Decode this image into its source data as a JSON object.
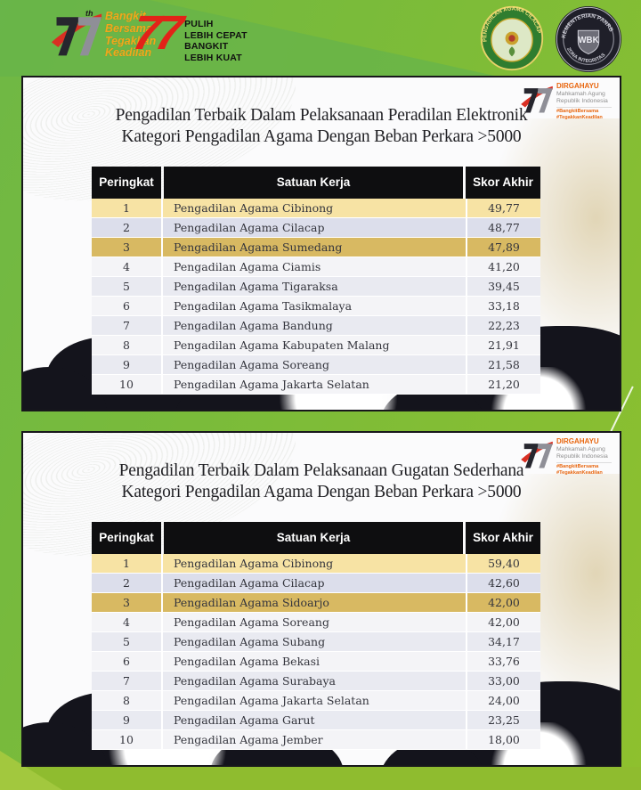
{
  "top_banner": {
    "anniversary_mark": {
      "sup": "th",
      "tagline_lines": [
        "Bangkit",
        "Bersama",
        "Tegakkan",
        "Keadilan"
      ]
    },
    "ri77": {
      "number": "77",
      "lines": [
        "PULIH",
        "LEBIH CEPAT",
        "BANGKIT",
        "LEBIH KUAT"
      ]
    },
    "court_badge": {
      "arc_text": "PENGADILAN AGAMA CILACAP"
    },
    "wbk_badge": {
      "arc_top": "KEMENTERIAN PANRB",
      "center": "WBK",
      "arc_bottom": "ZONA INTEGRITAS"
    }
  },
  "panel_corner_logo": {
    "dirgahayu": "DIRGAHAYU",
    "org1": "Mahkamah Agung",
    "org2": "Republik Indonesia",
    "hashtag1": "#BangkitBersama",
    "hashtag2": "#TegakkanKeadilan"
  },
  "sections": [
    {
      "title_line1": "Pengadilan Terbaik Dalam Pelaksanaan Peradilan Elektronik",
      "title_line2": "Kategori Pengadilan Agama Dengan Beban Perkara >5000",
      "columns": [
        "Peringkat",
        "Satuan Kerja",
        "Skor Akhir"
      ],
      "rows": [
        {
          "rank": "1",
          "unit": "Pengadilan Agama Cibinong",
          "score": "49,77"
        },
        {
          "rank": "2",
          "unit": "Pengadilan Agama Cilacap",
          "score": "48,77"
        },
        {
          "rank": "3",
          "unit": "Pengadilan Agama Sumedang",
          "score": "47,89"
        },
        {
          "rank": "4",
          "unit": "Pengadilan Agama Ciamis",
          "score": "41,20"
        },
        {
          "rank": "5",
          "unit": "Pengadilan Agama Tigaraksa",
          "score": "39,45"
        },
        {
          "rank": "6",
          "unit": "Pengadilan Agama Tasikmalaya",
          "score": "33,18"
        },
        {
          "rank": "7",
          "unit": "Pengadilan Agama Bandung",
          "score": "22,23"
        },
        {
          "rank": "8",
          "unit": "Pengadilan Agama Kabupaten Malang",
          "score": "21,91"
        },
        {
          "rank": "9",
          "unit": "Pengadilan Agama Soreang",
          "score": "21,58"
        },
        {
          "rank": "10",
          "unit": "Pengadilan Agama Jakarta Selatan",
          "score": "21,20"
        }
      ]
    },
    {
      "title_line1": "Pengadilan Terbaik Dalam Pelaksanaan Gugatan Sederhana",
      "title_line2": "Kategori Pengadilan Agama Dengan Beban Perkara >5000",
      "columns": [
        "Peringkat",
        "Satuan Kerja",
        "Skor Akhir"
      ],
      "rows": [
        {
          "rank": "1",
          "unit": "Pengadilan Agama Cibinong",
          "score": "59,40"
        },
        {
          "rank": "2",
          "unit": "Pengadilan Agama Cilacap",
          "score": "42,60"
        },
        {
          "rank": "3",
          "unit": "Pengadilan Agama Sidoarjo",
          "score": "42,00"
        },
        {
          "rank": "4",
          "unit": "Pengadilan Agama Soreang",
          "score": "42,00"
        },
        {
          "rank": "5",
          "unit": "Pengadilan Agama Subang",
          "score": "34,17"
        },
        {
          "rank": "6",
          "unit": "Pengadilan Agama Bekasi",
          "score": "33,76"
        },
        {
          "rank": "7",
          "unit": "Pengadilan Agama Surabaya",
          "score": "33,00"
        },
        {
          "rank": "8",
          "unit": "Pengadilan Agama Jakarta Selatan",
          "score": "24,00"
        },
        {
          "rank": "9",
          "unit": "Pengadilan Agama Garut",
          "score": "23,25"
        },
        {
          "rank": "10",
          "unit": "Pengadilan Agama Jember",
          "score": "18,00"
        }
      ]
    }
  ],
  "colors": {
    "frame_green": "#7abb3a",
    "header_black": "#0e0e10",
    "row_gold_light": "#f7e3a4",
    "row_lavender": "#dcdeeb",
    "row_gold_dark": "#d8b962",
    "accent_red": "#e22318",
    "accent_orange": "#f2a71b",
    "dirgahayu_orange": "#e8650d"
  }
}
